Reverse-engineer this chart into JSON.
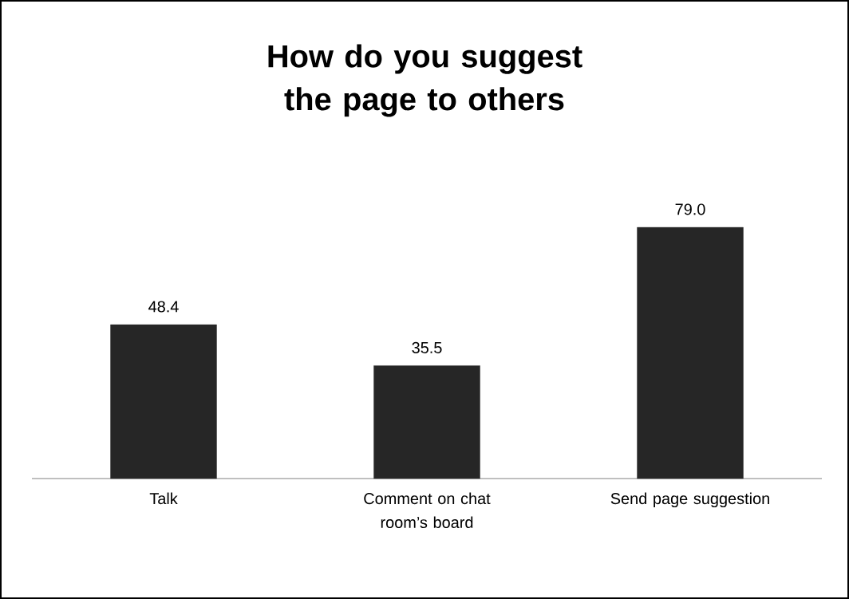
{
  "chart_data": {
    "type": "bar",
    "title": "How do you suggest the page to others",
    "categories": [
      "Talk",
      "Comment on chat room’s board",
      "Send page suggestion"
    ],
    "values": [
      48.4,
      35.5,
      79.0
    ],
    "value_labels": [
      "48.4",
      "35.5",
      "79.0"
    ],
    "color": "#262626",
    "tick_labels": "x"
  }
}
